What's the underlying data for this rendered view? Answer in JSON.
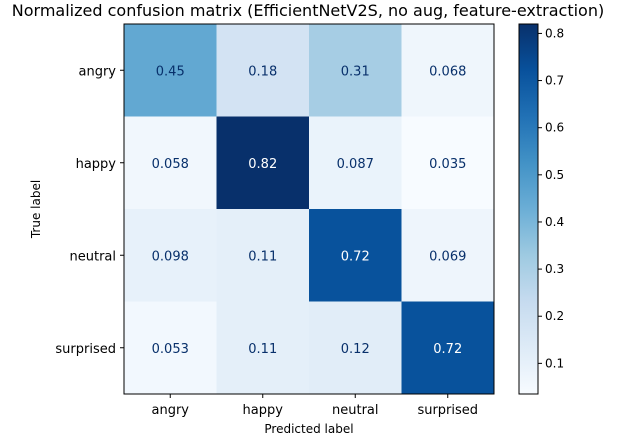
{
  "chart_data": {
    "type": "heatmap",
    "title": "Normalized confusion matrix (EfficientNetV2S, no aug, feature-extraction)",
    "xlabel": "Predicted label",
    "ylabel": "True label",
    "x_categories": [
      "angry",
      "happy",
      "neutral",
      "surprised"
    ],
    "y_categories": [
      "angry",
      "happy",
      "neutral",
      "surprised"
    ],
    "values": [
      [
        0.45,
        0.18,
        0.31,
        0.068
      ],
      [
        0.058,
        0.82,
        0.087,
        0.035
      ],
      [
        0.098,
        0.11,
        0.72,
        0.069
      ],
      [
        0.053,
        0.11,
        0.12,
        0.72
      ]
    ],
    "cell_labels": [
      [
        "0.45",
        "0.18",
        "0.31",
        "0.068"
      ],
      [
        "0.058",
        "0.82",
        "0.087",
        "0.035"
      ],
      [
        "0.098",
        "0.11",
        "0.72",
        "0.069"
      ],
      [
        "0.053",
        "0.11",
        "0.12",
        "0.72"
      ]
    ],
    "colormap": "Blues",
    "colorbar": {
      "range": [
        0.035,
        0.82
      ],
      "ticks": [
        0.1,
        0.2,
        0.3,
        0.4,
        0.5,
        0.6,
        0.7,
        0.8
      ],
      "tick_labels": [
        "0.1",
        "0.2",
        "0.3",
        "0.4",
        "0.5",
        "0.6",
        "0.7",
        "0.8"
      ]
    },
    "grid": false
  }
}
